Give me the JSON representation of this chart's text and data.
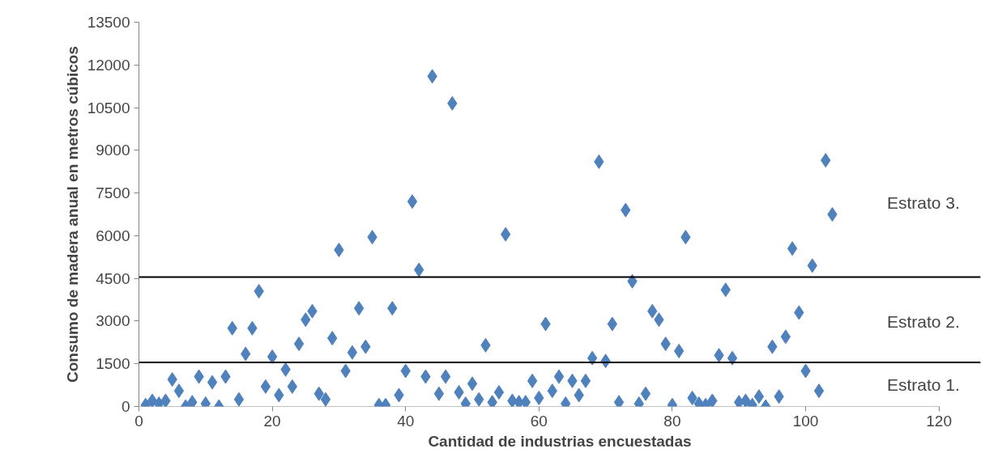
{
  "chart_data": {
    "type": "scatter",
    "xlabel": "Cantidad de industrias encuestadas",
    "ylabel": "Consumo de madera anual en metros cúbicos",
    "x": [
      1,
      2,
      3,
      4,
      5,
      6,
      7,
      8,
      9,
      10,
      11,
      12,
      13,
      14,
      15,
      16,
      17,
      18,
      19,
      20,
      21,
      22,
      23,
      24,
      25,
      26,
      27,
      28,
      29,
      30,
      31,
      32,
      33,
      34,
      35,
      36,
      37,
      38,
      39,
      40,
      41,
      42,
      43,
      44,
      45,
      46,
      47,
      48,
      49,
      50,
      51,
      52,
      53,
      54,
      55,
      56,
      57,
      58,
      59,
      60,
      61,
      62,
      63,
      64,
      65,
      66,
      67,
      68,
      69,
      70,
      71,
      72,
      73,
      74,
      75,
      76,
      77,
      78,
      79,
      80,
      81,
      82,
      83,
      84,
      85,
      86,
      87,
      88,
      89,
      90,
      91,
      92,
      93,
      94,
      95,
      96,
      97,
      98,
      99,
      100,
      101,
      102,
      103,
      104
    ],
    "series": [
      {
        "color": "#4f81bd",
        "values": [
          50,
          200,
          100,
          200,
          950,
          550,
          0,
          150,
          1050,
          100,
          850,
          0,
          1050,
          2750,
          250,
          1850,
          2750,
          4050,
          700,
          1750,
          400,
          1300,
          700,
          2200,
          3050,
          3350,
          450,
          250,
          2400,
          5500,
          1250,
          1900,
          3450,
          2100,
          5950,
          50,
          50,
          3450,
          400,
          1250,
          7200,
          4800,
          1050,
          11600,
          450,
          1050,
          10650,
          500,
          100,
          800,
          250,
          2150,
          150,
          500,
          6050,
          200,
          150,
          150,
          900,
          300,
          2900,
          550,
          1050,
          100,
          900,
          400,
          900,
          1700,
          8600,
          1600,
          2900,
          150,
          6900,
          4400,
          100,
          450,
          3350,
          3050,
          2200,
          50,
          1950,
          5950,
          300,
          100,
          50,
          200,
          1800,
          4100,
          1700,
          150,
          200,
          50,
          350,
          0,
          2100,
          350,
          2450,
          5550,
          3300,
          1250,
          4950,
          550,
          8650,
          6750
        ]
      }
    ],
    "marker": "diamond",
    "grid": false,
    "xlim": [
      0,
      120
    ],
    "xticks": [
      0,
      20,
      40,
      60,
      80,
      100,
      120
    ],
    "ylim": [
      0,
      13500
    ],
    "yticks": [
      0,
      1500,
      3000,
      4500,
      6000,
      7500,
      9000,
      10500,
      12000,
      13500
    ],
    "ref_lines": [
      {
        "axis": "y",
        "value": 1550,
        "color": "#000000"
      },
      {
        "axis": "y",
        "value": 4550,
        "color": "#000000"
      }
    ],
    "annotations": [
      "Estrato 3.",
      "Estrato 2.",
      "Estrato 1."
    ]
  }
}
